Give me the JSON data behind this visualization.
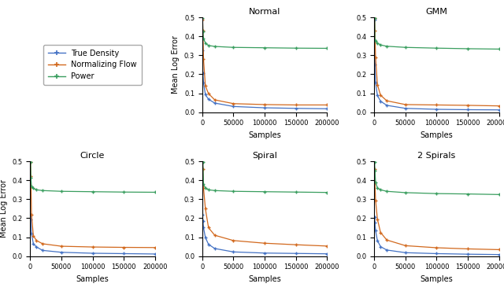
{
  "subplot_titles": [
    "Normal",
    "GMM",
    "Circle",
    "Spiral",
    "2 Spirals"
  ],
  "legend_labels": [
    "True Density",
    "Normalizing Flow",
    "Power"
  ],
  "line_colors": [
    "#4472c4",
    "#d2691e",
    "#3a9e5f"
  ],
  "xlabel": "Samples",
  "ylabel": "Mean Log Error",
  "ylim": [
    0.0,
    0.5
  ],
  "xlim": [
    0,
    200000
  ],
  "xticks": [
    0,
    50000,
    100000,
    150000,
    200000
  ],
  "yticks": [
    0.0,
    0.1,
    0.2,
    0.3,
    0.4,
    0.5
  ],
  "samples": [
    500,
    1000,
    2000,
    5000,
    10000,
    20000,
    50000,
    100000,
    150000,
    200000
  ],
  "Normal": {
    "true_density": [
      0.325,
      0.205,
      0.155,
      0.092,
      0.068,
      0.048,
      0.03,
      0.023,
      0.02,
      0.018
    ],
    "norm_flow": [
      0.49,
      0.43,
      0.28,
      0.138,
      0.098,
      0.065,
      0.045,
      0.04,
      0.038,
      0.038
    ],
    "power": [
      0.495,
      0.425,
      0.39,
      0.365,
      0.352,
      0.347,
      0.342,
      0.34,
      0.338,
      0.337
    ]
  },
  "GMM": {
    "true_density": [
      0.49,
      0.25,
      0.155,
      0.088,
      0.058,
      0.036,
      0.02,
      0.015,
      0.013,
      0.012
    ],
    "norm_flow": [
      0.495,
      0.43,
      0.29,
      0.145,
      0.09,
      0.06,
      0.04,
      0.038,
      0.036,
      0.033
    ],
    "power": [
      0.495,
      0.38,
      0.375,
      0.365,
      0.355,
      0.348,
      0.342,
      0.338,
      0.335,
      0.333
    ]
  },
  "Circle": {
    "true_density": [
      0.218,
      0.195,
      0.12,
      0.065,
      0.048,
      0.03,
      0.02,
      0.015,
      0.013,
      0.011
    ],
    "norm_flow": [
      0.495,
      0.42,
      0.22,
      0.108,
      0.082,
      0.065,
      0.052,
      0.048,
      0.046,
      0.045
    ],
    "power": [
      0.495,
      0.415,
      0.368,
      0.358,
      0.35,
      0.346,
      0.342,
      0.34,
      0.338,
      0.337
    ]
  },
  "Spiral": {
    "true_density": [
      0.22,
      0.185,
      0.15,
      0.098,
      0.062,
      0.04,
      0.022,
      0.016,
      0.014,
      0.012
    ],
    "norm_flow": [
      0.495,
      0.46,
      0.36,
      0.25,
      0.15,
      0.11,
      0.082,
      0.068,
      0.06,
      0.053
    ],
    "power": [
      0.496,
      0.495,
      0.38,
      0.36,
      0.35,
      0.346,
      0.342,
      0.34,
      0.338,
      0.336
    ]
  },
  "2 Spirals": {
    "true_density": [
      0.205,
      0.175,
      0.135,
      0.082,
      0.05,
      0.032,
      0.018,
      0.013,
      0.01,
      0.008
    ],
    "norm_flow": [
      0.46,
      0.39,
      0.295,
      0.195,
      0.125,
      0.085,
      0.055,
      0.044,
      0.038,
      0.034
    ],
    "power": [
      0.495,
      0.45,
      0.39,
      0.36,
      0.35,
      0.342,
      0.335,
      0.33,
      0.328,
      0.325
    ]
  }
}
